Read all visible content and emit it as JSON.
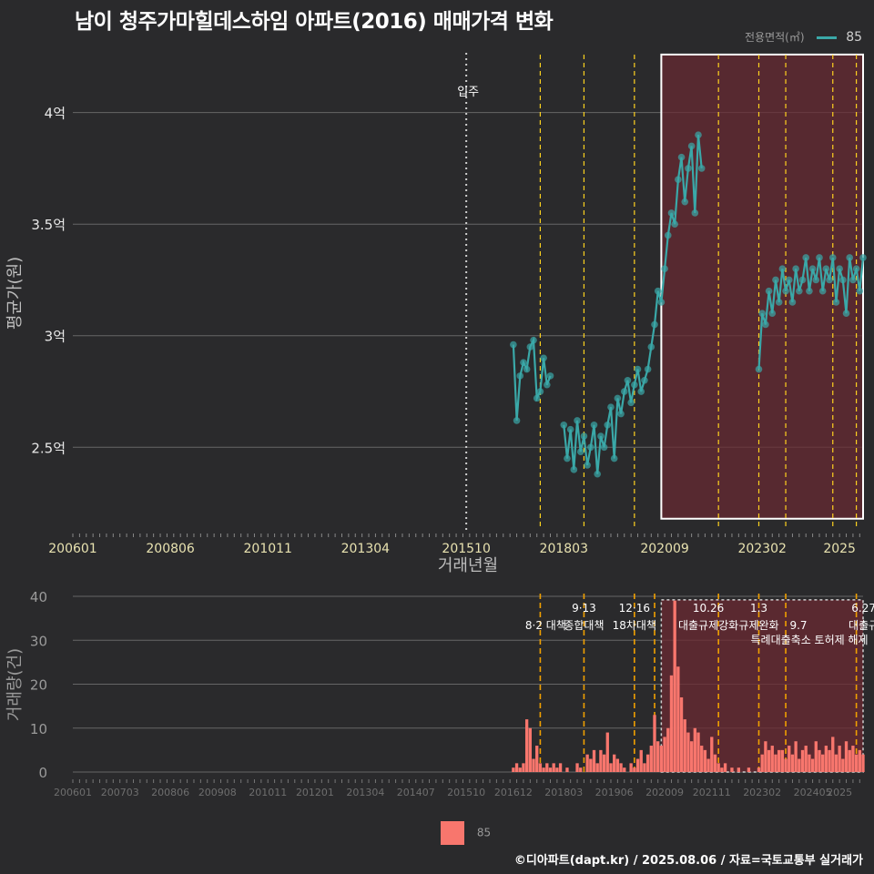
{
  "title": "남이 청주가마힐데스하임 아파트(2016) 매매가격 변화",
  "legend_top": {
    "label": "전용면적(㎡)",
    "value": "85"
  },
  "legend_bottom": {
    "value": "85"
  },
  "footer": "©디아파트(dapt.kr) / 2025.08.06 / 자료=국토교통부 실거래가",
  "colors": {
    "line": "#3aa8a8",
    "bar": "#f8766d",
    "highlight": "#6b2a32",
    "policy_line": "#ffd21f",
    "bg": "#2a2a2c"
  },
  "chart_data": [
    {
      "type": "line",
      "title": "남이 청주가마힐데스하임 아파트(2016) 매매가격 변화",
      "xlabel": "거래년월",
      "ylabel": "평균가(원)",
      "x_range": [
        "2006-01",
        "2025-08"
      ],
      "ylim": [
        2.13,
        4.28
      ],
      "y_ticks": [
        {
          "value": 2.5,
          "label": "2.5억"
        },
        {
          "value": 3.0,
          "label": "3억"
        },
        {
          "value": 3.5,
          "label": "3.5억"
        },
        {
          "value": 4.0,
          "label": "4억"
        }
      ],
      "x_ticks": [
        "200601",
        "200806",
        "201011",
        "201304",
        "201510",
        "201803",
        "202009",
        "202302",
        "2025"
      ],
      "move_in": {
        "label": "입주",
        "x": "2015-10"
      },
      "highlight_range": [
        "2020-08",
        "2025-08"
      ],
      "policy_dates": [
        "2017-08",
        "2018-09",
        "2019-12",
        "2022-01",
        "2023-01",
        "2023-09",
        "2024-11",
        "2025-06"
      ],
      "series": [
        {
          "name": "85",
          "x": [
            "2016-12",
            "2017-01",
            "2017-02",
            "2017-03",
            "2017-04",
            "2017-05",
            "2017-06",
            "2017-07",
            "2017-08",
            "2017-09",
            "2017-10",
            "2017-11",
            "2017-12",
            "2018-01",
            "2018-02",
            "2018-03",
            "2018-04",
            "2018-05",
            "2018-06",
            "2018-07",
            "2018-08",
            "2018-09",
            "2018-10",
            "2018-11",
            "2018-12",
            "2019-01",
            "2019-02",
            "2019-03",
            "2019-04",
            "2019-05",
            "2019-06",
            "2019-07",
            "2019-08",
            "2019-09",
            "2019-10",
            "2019-11",
            "2019-12",
            "2020-01",
            "2020-02",
            "2020-03",
            "2020-04",
            "2020-05",
            "2020-06",
            "2020-07",
            "2020-08",
            "2020-09",
            "2020-10",
            "2020-11",
            "2020-12",
            "2021-01",
            "2021-02",
            "2021-03",
            "2021-04",
            "2021-05",
            "2021-06",
            "2021-07",
            "2021-08",
            "2021-09",
            "2021-10",
            "2021-11",
            "2021-12",
            "2023-01",
            "2023-02",
            "2023-03",
            "2023-04",
            "2023-05",
            "2023-06",
            "2023-07",
            "2023-08",
            "2023-09",
            "2023-10",
            "2023-11",
            "2023-12",
            "2024-01",
            "2024-02",
            "2024-03",
            "2024-04",
            "2024-05",
            "2024-06",
            "2024-07",
            "2024-08",
            "2024-09",
            "2024-10",
            "2024-11",
            "2024-12",
            "2025-01",
            "2025-02",
            "2025-03",
            "2025-04",
            "2025-05",
            "2025-06",
            "2025-07",
            "2025-08"
          ],
          "y": [
            2.96,
            2.62,
            2.82,
            2.88,
            2.85,
            2.95,
            2.98,
            2.72,
            2.75,
            2.9,
            2.78,
            2.82,
            null,
            null,
            null,
            2.6,
            2.45,
            2.58,
            2.4,
            2.62,
            2.48,
            2.55,
            2.42,
            2.5,
            2.6,
            2.38,
            2.55,
            2.5,
            2.6,
            2.68,
            2.45,
            2.72,
            2.65,
            2.75,
            2.8,
            2.7,
            2.78,
            2.85,
            2.75,
            2.8,
            2.85,
            2.95,
            3.05,
            3.2,
            3.15,
            3.3,
            3.45,
            3.55,
            3.5,
            3.7,
            3.8,
            3.6,
            3.75,
            3.85,
            3.55,
            3.9,
            3.75,
            null,
            null,
            null,
            null,
            2.85,
            3.1,
            3.05,
            3.2,
            3.1,
            3.25,
            3.15,
            3.3,
            3.2,
            3.25,
            3.15,
            3.3,
            3.2,
            3.25,
            3.35,
            3.2,
            3.3,
            3.25,
            3.35,
            3.2,
            3.3,
            3.25,
            3.35,
            3.15,
            3.3,
            3.25,
            3.1,
            3.35,
            3.25,
            3.3,
            3.2,
            3.35
          ]
        }
      ]
    },
    {
      "type": "bar",
      "xlabel": "",
      "ylabel": "거래량(건)",
      "ylim": [
        0,
        40
      ],
      "y_ticks": [
        "0",
        "10",
        "20",
        "30",
        "40"
      ],
      "x_ticks": [
        "200601",
        "200703",
        "200806",
        "200908",
        "201011",
        "201201",
        "201304",
        "201407",
        "201510",
        "201612",
        "201803",
        "201906",
        "202009",
        "202111",
        "202302",
        "202405",
        "2025"
      ],
      "highlight_range": [
        "2020-08",
        "2025-08"
      ],
      "policy_dates": [
        "2017-08",
        "2018-09",
        "2019-12",
        "2020-06",
        "2022-01",
        "2023-01",
        "2023-09",
        "2025-06"
      ],
      "policy_labels": [
        {
          "x": "2017-08",
          "line1": "",
          "line2": "8·2 대책"
        },
        {
          "x": "2018-09",
          "line1": "9·13",
          "line2": "종합대책"
        },
        {
          "x": "2019-12",
          "line1": "12·16",
          "line2": "18차대책"
        },
        {
          "x": "2021-10",
          "line1": "10.26",
          "line2": "대출규제강화"
        },
        {
          "x": "2023-01",
          "line1": "1.3",
          "line2": "규제완화"
        },
        {
          "x": "2023-09",
          "line1": "",
          "line2": "9.7"
        },
        {
          "x": "2023-09",
          "line1": "",
          "line2": "특례대출축소 토허제 해제"
        },
        {
          "x": "2025-06",
          "line1": "6.27",
          "line2": "대출규"
        }
      ],
      "series": [
        {
          "name": "85",
          "x": [
            "2016-12",
            "2017-01",
            "2017-02",
            "2017-03",
            "2017-04",
            "2017-05",
            "2017-06",
            "2017-07",
            "2017-08",
            "2017-09",
            "2017-10",
            "2017-11",
            "2017-12",
            "2018-01",
            "2018-02",
            "2018-03",
            "2018-04",
            "2018-05",
            "2018-06",
            "2018-07",
            "2018-08",
            "2018-09",
            "2018-10",
            "2018-11",
            "2018-12",
            "2019-01",
            "2019-02",
            "2019-03",
            "2019-04",
            "2019-05",
            "2019-06",
            "2019-07",
            "2019-08",
            "2019-09",
            "2019-10",
            "2019-11",
            "2019-12",
            "2020-01",
            "2020-02",
            "2020-03",
            "2020-04",
            "2020-05",
            "2020-06",
            "2020-07",
            "2020-08",
            "2020-09",
            "2020-10",
            "2020-11",
            "2020-12",
            "2021-01",
            "2021-02",
            "2021-03",
            "2021-04",
            "2021-05",
            "2021-06",
            "2021-07",
            "2021-08",
            "2021-09",
            "2021-10",
            "2021-11",
            "2021-12",
            "2022-01",
            "2022-02",
            "2022-03",
            "2022-04",
            "2022-05",
            "2022-06",
            "2022-07",
            "2022-08",
            "2022-09",
            "2022-10",
            "2022-11",
            "2022-12",
            "2023-01",
            "2023-02",
            "2023-03",
            "2023-04",
            "2023-05",
            "2023-06",
            "2023-07",
            "2023-08",
            "2023-09",
            "2023-10",
            "2023-11",
            "2023-12",
            "2024-01",
            "2024-02",
            "2024-03",
            "2024-04",
            "2024-05",
            "2024-06",
            "2024-07",
            "2024-08",
            "2024-09",
            "2024-10",
            "2024-11",
            "2024-12",
            "2025-01",
            "2025-02",
            "2025-03",
            "2025-04",
            "2025-05",
            "2025-06",
            "2025-07",
            "2025-08"
          ],
          "values": [
            1,
            2,
            1,
            2,
            12,
            10,
            3,
            6,
            2,
            1,
            2,
            1,
            2,
            1,
            2,
            0,
            1,
            0,
            0,
            2,
            1,
            0,
            4,
            3,
            5,
            2,
            5,
            4,
            9,
            2,
            4,
            3,
            2,
            1,
            0,
            2,
            1,
            3,
            5,
            2,
            4,
            6,
            13,
            7,
            6,
            8,
            10,
            22,
            39,
            24,
            17,
            12,
            9,
            7,
            10,
            9,
            6,
            5,
            3,
            8,
            4,
            2,
            1,
            2,
            0,
            1,
            0,
            1,
            0,
            0,
            1,
            0,
            0,
            1,
            4,
            7,
            5,
            6,
            4,
            5,
            5,
            3,
            6,
            4,
            7,
            3,
            5,
            6,
            4,
            3,
            7,
            5,
            4,
            6,
            5,
            8,
            4,
            6,
            3,
            7,
            5,
            6,
            4,
            5,
            4
          ]
        }
      ]
    }
  ]
}
